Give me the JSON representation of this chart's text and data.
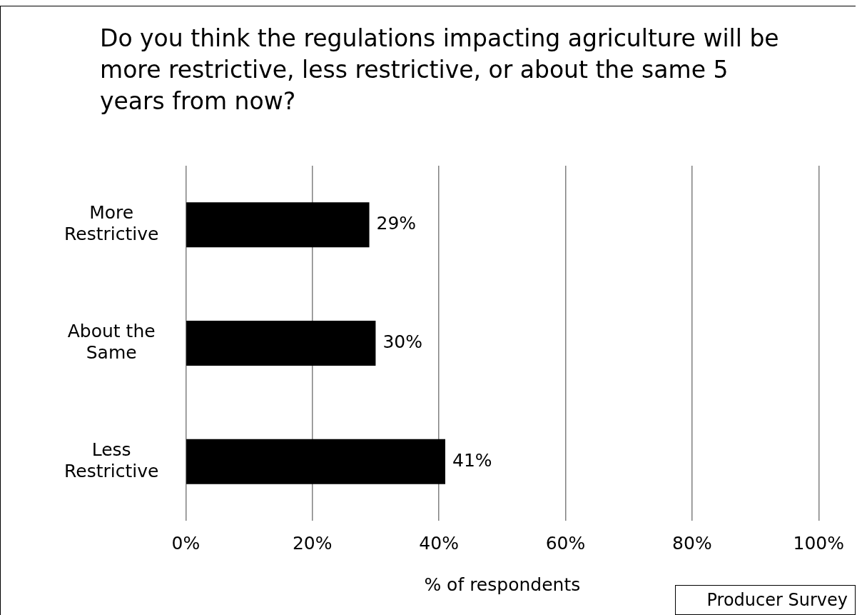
{
  "chart_data": {
    "type": "bar",
    "orientation": "horizontal",
    "title": "Do you think the regulations impacting agriculture will be more restrictive, less restrictive, or about the same 5 years from now?",
    "categories": [
      "More Restrictive",
      "About the Same",
      "Less Restrictive"
    ],
    "values": [
      29,
      30,
      41
    ],
    "color": "#000000",
    "value_labels": [
      "29%",
      "30%",
      "41%"
    ],
    "xlabel": "% of respondents",
    "xlim": [
      0,
      100
    ],
    "xticks": [
      {
        "value": 0,
        "label": "0%"
      },
      {
        "value": 20,
        "label": "20%"
      },
      {
        "value": 40,
        "label": "40%"
      },
      {
        "value": 60,
        "label": "60%"
      },
      {
        "value": 80,
        "label": "80%"
      },
      {
        "value": 100,
        "label": "100%"
      }
    ],
    "grid": "x",
    "legend": false,
    "annotations": [
      "Producer Survey"
    ]
  }
}
